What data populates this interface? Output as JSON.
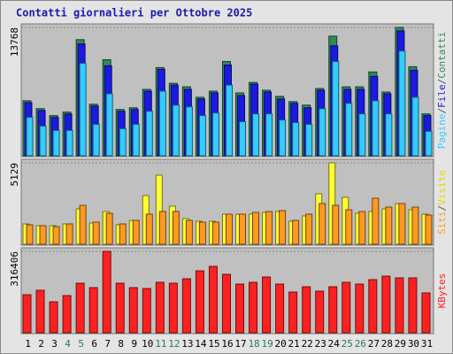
{
  "title": "Contatti giornalieri per Ottobre 2025",
  "legend_separator": "/",
  "categories": [
    "1",
    "2",
    "3",
    "4",
    "5",
    "6",
    "7",
    "8",
    "9",
    "10",
    "11",
    "12",
    "13",
    "14",
    "15",
    "16",
    "17",
    "18",
    "19",
    "20",
    "21",
    "22",
    "23",
    "24",
    "25",
    "26",
    "27",
    "28",
    "29",
    "30",
    "31"
  ],
  "category_colors": [
    "#000",
    "#000",
    "#000",
    "#2a7a5a",
    "#2a7a5a",
    "#000",
    "#000",
    "#000",
    "#000",
    "#000",
    "#2a7a5a",
    "#2a7a5a",
    "#000",
    "#000",
    "#000",
    "#000",
    "#000",
    "#2a7a5a",
    "#2a7a5a",
    "#000",
    "#000",
    "#000",
    "#000",
    "#000",
    "#2a7a5a",
    "#2a7a5a",
    "#000",
    "#000",
    "#000",
    "#000",
    "#000"
  ],
  "chart_data": [
    {
      "type": "bar",
      "ylim": [
        0,
        13768
      ],
      "yticks": [
        13768
      ],
      "series": [
        {
          "name": "Contatti",
          "color": "#2e8b57",
          "values": [
            5900,
            5058,
            4308,
            4683,
            12457,
            5526,
            10303,
            4964,
            5151,
            7118,
            9460,
            7774,
            7399,
            6275,
            6931,
            10115,
            6744,
            7867,
            7025,
            6369,
            5807,
            5432,
            7212,
            12831,
            7399,
            7399,
            8991,
            6837,
            13768,
            9553,
            4496
          ]
        },
        {
          "name": "File",
          "color": "#1a1ae0",
          "values": [
            5700,
            4860,
            4110,
            4480,
            12000,
            5330,
            9650,
            4770,
            4960,
            6920,
            9270,
            7580,
            7120,
            6090,
            6740,
            9740,
            6460,
            7680,
            6840,
            6090,
            5620,
            5150,
            7030,
            11800,
            7120,
            7120,
            8520,
            6650,
            13400,
            9180,
            4310
          ]
        },
        {
          "name": "Pagine",
          "color": "#33ccff",
          "values": [
            4121,
            3184,
            2716,
            2716,
            9928,
            3372,
            6650,
            2903,
            3372,
            4777,
            6931,
            5432,
            5245,
            4308,
            4589,
            7586,
            3653,
            4496,
            4496,
            3840,
            3559,
            3372,
            5058,
            10115,
            5620,
            4496,
            5901,
            4496,
            11239,
            6275,
            2622
          ]
        }
      ]
    },
    {
      "type": "bar",
      "ylim": [
        0,
        5129
      ],
      "yticks": [
        5129
      ],
      "series": [
        {
          "name": "Visite",
          "color": "#ffff33",
          "values": [
            1282,
            1171,
            1171,
            1282,
            2230,
            1338,
            2063,
            1227,
            1505,
            3066,
            4349,
            2397,
            1617,
            1450,
            1450,
            1896,
            1896,
            1896,
            2007,
            2063,
            1450,
            1784,
            3178,
            5129,
            2955,
            1951,
            2063,
            2230,
            2565,
            2174,
            1896
          ]
        },
        {
          "name": "Siti",
          "color": "#ff9922",
          "values": [
            1227,
            1171,
            1115,
            1282,
            2453,
            1394,
            1951,
            1282,
            1505,
            1896,
            2063,
            2063,
            1505,
            1394,
            1394,
            1896,
            1896,
            2007,
            2063,
            2119,
            1505,
            1896,
            2565,
            2453,
            2174,
            2063,
            2899,
            2342,
            2565,
            2342,
            1840
          ]
        }
      ]
    },
    {
      "type": "bar",
      "ylim": [
        0,
        316406
      ],
      "yticks": [
        316406
      ],
      "series": [
        {
          "name": "KBytes",
          "color": "#ff2020",
          "values": [
            147877,
            165072,
            120365,
            144438,
            192584,
            175389,
            316406,
            192584,
            175389,
            171950,
            196023,
            192584,
            209779,
            240730,
            257925,
            226974,
            189145,
            196023,
            216657,
            189145,
            158194,
            178828,
            161633,
            178828,
            196023,
            189145,
            206340,
            220096,
            213218,
            213218,
            154755
          ]
        }
      ]
    }
  ]
}
